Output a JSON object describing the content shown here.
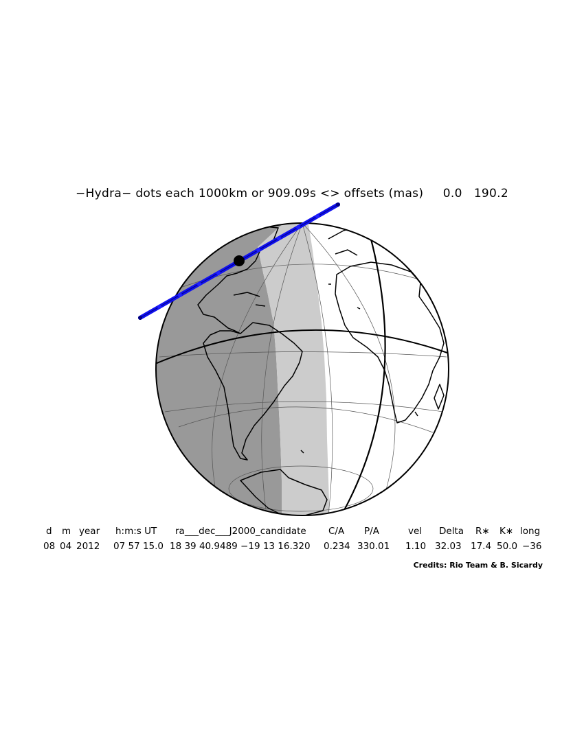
{
  "title": "−Hydra− dots each 1000km or 909.09s <> offsets (mas)     0.0   190.2",
  "table": {
    "headers": [
      "d",
      "m",
      "year",
      "h:m:s UT",
      "ra___dec___J2000_candidate",
      "C/A",
      "P/A",
      "vel",
      "Delta",
      "R∗",
      "K∗",
      "long"
    ],
    "values": [
      "08",
      "04",
      "2012",
      "07 57 15.0",
      "18 39 40.9489 −19 13 16.320",
      "0.234",
      "330.01",
      "1.10",
      "32.03",
      "17.4",
      "50.0",
      "−36"
    ]
  },
  "credits": "Credits: Rio Team & B. Sicardy",
  "colors": {
    "night": "#999999",
    "twilight": "#cccccc",
    "day": "#ffffff",
    "track": "#1010ee",
    "outline": "#000000"
  }
}
